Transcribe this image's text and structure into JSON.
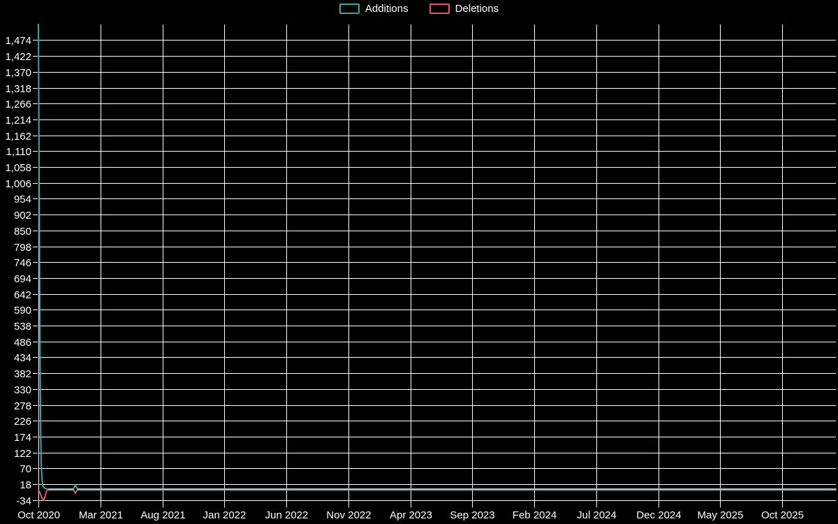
{
  "page": {
    "background_color": "#000000",
    "text_color": "#ffffff",
    "grid_color": "#ffffff"
  },
  "legend": {
    "items": [
      {
        "label": "Additions",
        "color": "#3aa8a8"
      },
      {
        "label": "Deletions",
        "color": "#e5546f"
      }
    ]
  },
  "chart_data": {
    "type": "line",
    "title": "",
    "grid": true,
    "legend_position": "top-center",
    "x_axis": {
      "unit": "month",
      "months_between_ticks": 5,
      "tick_labels": [
        "Oct 2020",
        "Mar 2021",
        "Aug 2021",
        "Jan 2022",
        "Jun 2022",
        "Nov 2022",
        "Apr 2023",
        "Sep 2023",
        "Feb 2024",
        "Jul 2024",
        "Dec 2024",
        "May 2025",
        "Oct 2025"
      ]
    },
    "y_axis": {
      "min": -34,
      "max": 1526,
      "step": 52,
      "tick_labels": [
        "1,474",
        "1,422",
        "1,370",
        "1,318",
        "1,266",
        "1,214",
        "1,162",
        "1,110",
        "1,058",
        "1,006",
        "954",
        "902",
        "850",
        "798",
        "746",
        "694",
        "642",
        "590",
        "538",
        "486",
        "434",
        "382",
        "330",
        "278",
        "226",
        "174",
        "122",
        "70",
        "18",
        "-34"
      ]
    },
    "series": [
      {
        "name": "Additions",
        "color": "#3aa8a8",
        "points_weeks_from_oct2020": [
          [
            0,
            1526
          ],
          [
            0.2,
            1150
          ],
          [
            0.4,
            760
          ],
          [
            0.6,
            420
          ],
          [
            0.8,
            190
          ],
          [
            1,
            80
          ],
          [
            1.3,
            30
          ],
          [
            1.6,
            12
          ],
          [
            2,
            6
          ],
          [
            2.6,
            3
          ],
          [
            3.5,
            2
          ],
          [
            12.3,
            2
          ],
          [
            13,
            16
          ],
          [
            13.7,
            2
          ],
          [
            280,
            2
          ]
        ]
      },
      {
        "name": "Deletions",
        "color": "#e5546f",
        "points_weeks_from_oct2020": [
          [
            0,
            -2
          ],
          [
            0.4,
            -6
          ],
          [
            0.8,
            -16
          ],
          [
            1.2,
            -27
          ],
          [
            1.7,
            -34
          ],
          [
            2.2,
            -26
          ],
          [
            2.6,
            -12
          ],
          [
            3,
            -3
          ],
          [
            3.5,
            0
          ],
          [
            12.3,
            0
          ],
          [
            13,
            -11
          ],
          [
            13.7,
            0
          ],
          [
            280,
            0
          ]
        ]
      }
    ],
    "overlap_line": {
      "color": "#a3b6be",
      "value": 1,
      "segments_weeks": [
        [
          3.5,
          12.3
        ],
        [
          13.7,
          280
        ]
      ]
    },
    "readings": {
      "peak_additions_week_oct_2020": 1526,
      "peak_deletions_week_oct_2020": -34,
      "minor_spike_jan_2021": {
        "additions": 16,
        "deletions": -11
      },
      "baseline_rest_of_range": 0
    }
  }
}
